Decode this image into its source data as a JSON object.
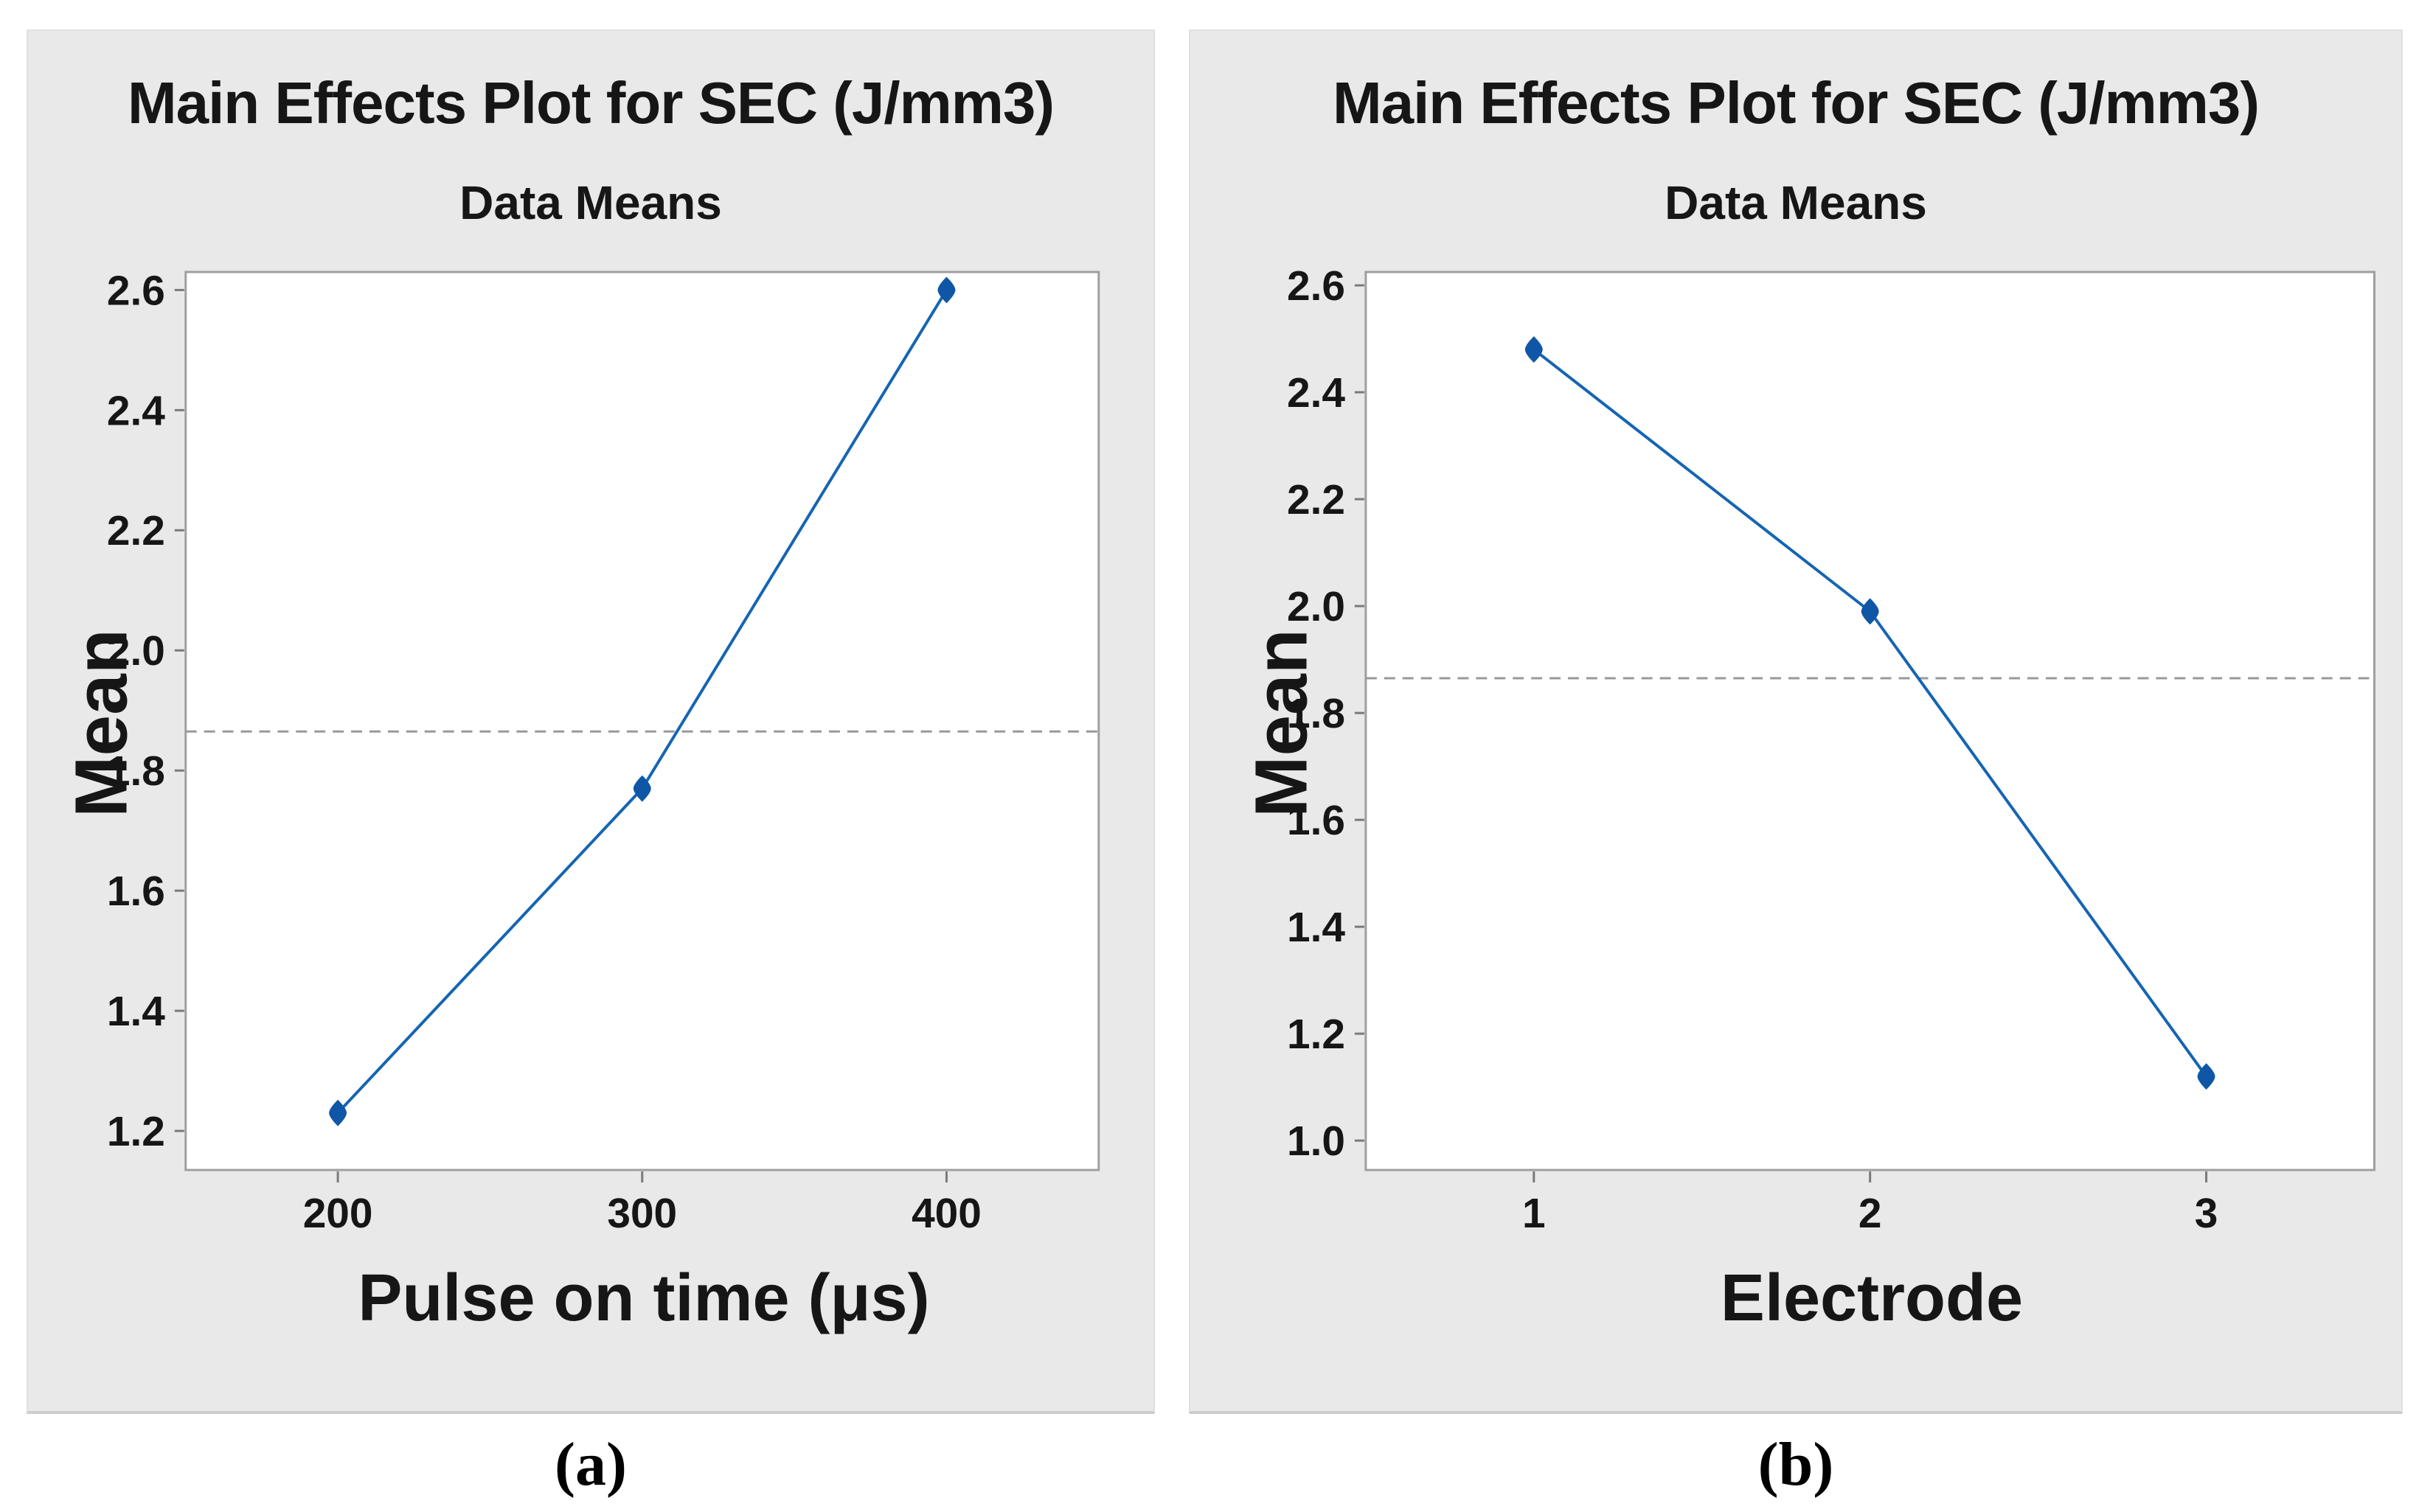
{
  "page": {
    "background_color": "#ffffff",
    "panel_background_color": "#e9e9e9",
    "plot_background_color": "#ffffff",
    "plot_border_color": "#9f9f9f",
    "accent_line_color": "#1565b2",
    "marker_color": "#0f57a6",
    "reference_line_color": "#999999",
    "tick_color": "#7a7a7a",
    "text_color": "#161616"
  },
  "captions": {
    "a": "(a)",
    "b": "(b)"
  },
  "chart_data": [
    {
      "type": "line",
      "subfigure": "a",
      "title": "Main Effects Plot for SEC (J/mm3)",
      "subtitle": "Data Means",
      "xlabel": "Pulse on time (μs)",
      "ylabel": "Mean",
      "categories": [
        "200",
        "300",
        "400"
      ],
      "values": [
        1.23,
        1.77,
        2.6
      ],
      "reference_mean": 1.865,
      "y_ticks": [
        "2.6",
        "2.4",
        "2.2",
        "2.0",
        "1.8",
        "1.6",
        "1.4",
        "1.2"
      ],
      "ylim": [
        1.135,
        2.63
      ],
      "grid": false,
      "legend": "none",
      "marker": "diamond"
    },
    {
      "type": "line",
      "subfigure": "b",
      "title": "Main Effects Plot for SEC (J/mm3)",
      "subtitle": "Data Means",
      "xlabel": "Electrode",
      "ylabel": "Mean",
      "categories": [
        "1",
        "2",
        "3"
      ],
      "values": [
        2.48,
        1.99,
        1.12
      ],
      "reference_mean": 1.865,
      "y_ticks": [
        "2.6",
        "2.4",
        "2.2",
        "2.0",
        "1.8",
        "1.6",
        "1.4",
        "1.2",
        "1.0"
      ],
      "ylim": [
        0.945,
        2.625
      ],
      "grid": false,
      "legend": "none",
      "marker": "diamond"
    }
  ]
}
